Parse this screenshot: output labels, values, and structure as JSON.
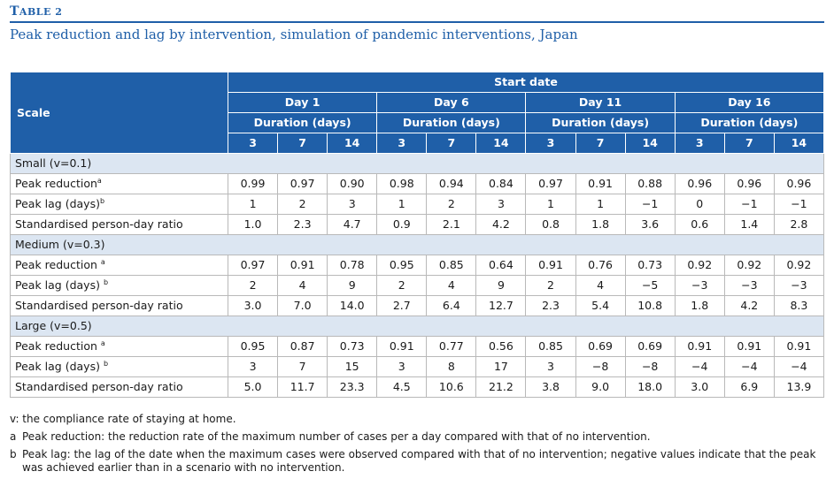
{
  "table_label_big": "T",
  "table_label_rest": "able 2",
  "caption": "Peak reduction and lag by intervention, simulation of pandemic interventions, Japan",
  "header": {
    "scale": "Scale",
    "start_date": "Start date",
    "days": [
      "Day 1",
      "Day 6",
      "Day 11",
      "Day 16"
    ],
    "duration": "Duration (days)",
    "durations": [
      "3",
      "7",
      "14",
      "3",
      "7",
      "14",
      "3",
      "7",
      "14",
      "3",
      "7",
      "14"
    ]
  },
  "sections": [
    {
      "title": "Small  (v=0.1)",
      "rows": [
        {
          "label": "Peak reduction",
          "sup": "a",
          "values": [
            "0.99",
            "0.97",
            "0.90",
            "0.98",
            "0.94",
            "0.84",
            "0.97",
            "0.91",
            "0.88",
            "0.96",
            "0.96",
            "0.96"
          ]
        },
        {
          "label": "Peak lag (days)",
          "sup": "b",
          "values": [
            "1",
            "2",
            "3",
            "1",
            "2",
            "3",
            "1",
            "1",
            "−1",
            "0",
            "−1",
            "−1"
          ]
        },
        {
          "label": "Standardised person-day ratio",
          "sup": "",
          "values": [
            "1.0",
            "2.3",
            "4.7",
            "0.9",
            "2.1",
            "4.2",
            "0.8",
            "1.8",
            "3.6",
            "0.6",
            "1.4",
            "2.8"
          ]
        }
      ]
    },
    {
      "title": "Medium  (v=0.3)",
      "rows": [
        {
          "label": "Peak reduction ",
          "sup": "a",
          "values": [
            "0.97",
            "0.91",
            "0.78",
            "0.95",
            "0.85",
            "0.64",
            "0.91",
            "0.76",
            "0.73",
            "0.92",
            "0.92",
            "0.92"
          ]
        },
        {
          "label": "Peak lag (days) ",
          "sup": "b",
          "values": [
            "2",
            "4",
            "9",
            "2",
            "4",
            "9",
            "2",
            "4",
            "−5",
            "−3",
            "−3",
            "−3"
          ]
        },
        {
          "label": "Standardised person-day ratio",
          "sup": "",
          "values": [
            "3.0",
            "7.0",
            "14.0",
            "2.7",
            "6.4",
            "12.7",
            "2.3",
            "5.4",
            "10.8",
            "1.8",
            "4.2",
            "8.3"
          ]
        }
      ]
    },
    {
      "title": "Large  (v=0.5)",
      "rows": [
        {
          "label": "Peak reduction ",
          "sup": "a",
          "values": [
            "0.95",
            "0.87",
            "0.73",
            "0.91",
            "0.77",
            "0.56",
            "0.85",
            "0.69",
            "0.69",
            "0.91",
            "0.91",
            "0.91"
          ]
        },
        {
          "label": "Peak lag (days) ",
          "sup": "b",
          "values": [
            "3",
            "7",
            "15",
            "3",
            "8",
            "17",
            "3",
            "−8",
            "−8",
            "−4",
            "−4",
            "−4"
          ]
        },
        {
          "label": "Standardised person-day ratio",
          "sup": "",
          "values": [
            "5.0",
            "11.7",
            "23.3",
            "4.5",
            "10.6",
            "21.2",
            "3.8",
            "9.0",
            "18.0",
            "3.0",
            "6.9",
            "13.9"
          ]
        }
      ]
    }
  ],
  "notes": [
    {
      "key": "",
      "text": "v: the compliance rate of staying at home."
    },
    {
      "key": "a",
      "text": "Peak reduction: the reduction rate of the maximum number of cases per a day compared with that of no intervention."
    },
    {
      "key": "b",
      "text": "Peak lag: the lag of the date when the maximum cases were observed compared with that of no intervention; negative values indicate that the peak was achieved earlier than in a scenario with no intervention."
    }
  ],
  "colors": {
    "header_bg": "#1f5fa8",
    "section_bg": "#dce6f2",
    "title_color": "#1f5fa8"
  }
}
